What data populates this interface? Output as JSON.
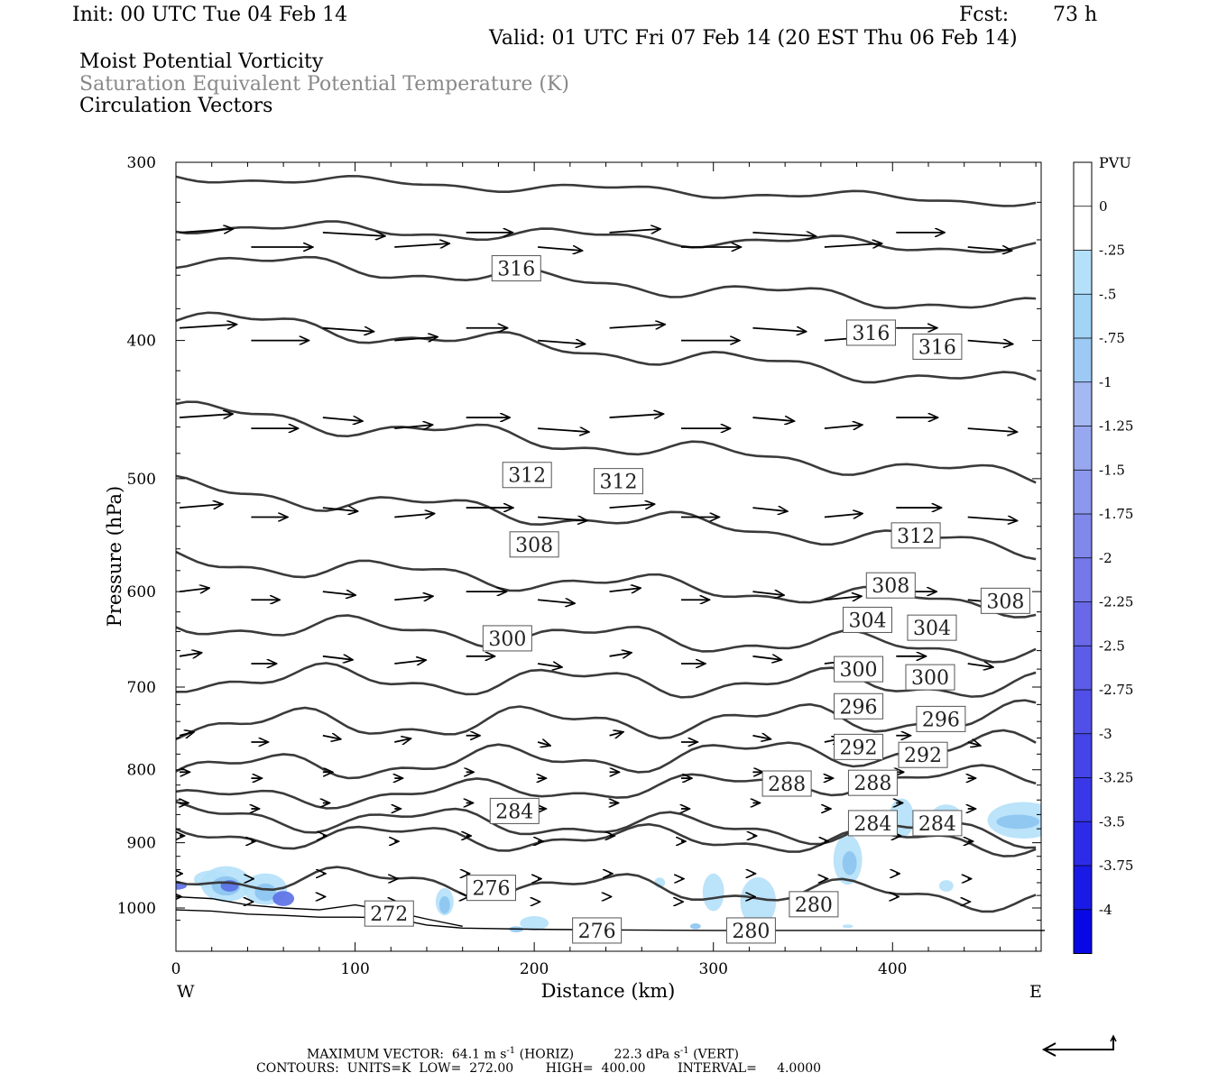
{
  "header": {
    "init": "Init: 00 UTC Tue 04 Feb 14",
    "fcst_label": "Fcst:",
    "fcst_value": "73 h",
    "valid": "Valid: 01 UTC Fri 07 Feb 14 (20 EST Thu 06 Feb 14)",
    "field1": "Moist Potential Vorticity",
    "field2": "Saturation Equivalent Potential Temperature (K)",
    "field3": "Circulation Vectors"
  },
  "footer": {
    "max_vector_prefix": "MAXIMUM VECTOR:  64.1 m s",
    "max_vector_mid": " (HORIZ)          22.3 dPa s",
    "max_vector_suffix": " (VERT)",
    "sup": "-1",
    "contours": "CONTOURS:  UNITS=K  LOW=  272.00        HIGH=  400.00        INTERVAL=     4.0000"
  },
  "colors": {
    "contour": "#3a3a3a",
    "shade_light": "#b4e0fa",
    "shade_mid": "#8cc4f0",
    "shade_dark": "#5a6ee6",
    "shade_darkest": "#2a2ae6"
  },
  "chart_data": {
    "type": "contour",
    "xlabel": "Distance (km)",
    "ylabel": "Pressure (hPa)",
    "xlim": [
      0,
      485
    ],
    "ylim": [
      1040,
      300
    ],
    "y_scale": "log",
    "x_ticks": [
      0,
      100,
      200,
      300,
      400
    ],
    "x_tick_labels": [
      "0",
      "100",
      "200",
      "300",
      "400"
    ],
    "y_ticks": [
      300,
      400,
      500,
      600,
      700,
      800,
      900,
      1000
    ],
    "y_tick_labels": [
      "300",
      "400",
      "500",
      "600",
      "700",
      "800",
      "900",
      "1000"
    ],
    "left_label": "W",
    "right_label": "E",
    "colorbar": {
      "title": "PVU",
      "tick_labels": [
        "0",
        "-.25",
        "-.5",
        "-.75",
        "-1",
        "-1.25",
        "-1.5",
        "-1.75",
        "-2",
        "-2.25",
        "-2.5",
        "-2.75",
        "-3",
        "-3.25",
        "-3.5",
        "-3.75",
        "-4"
      ],
      "colors": [
        "#ffffff",
        "#ffffff",
        "#b4e0fa",
        "#a2d4f6",
        "#9ccaf4",
        "#a4b8f2",
        "#98a8f0",
        "#8c98ee",
        "#8088ec",
        "#7478ea",
        "#6868e8",
        "#5c5ce8",
        "#5050e8",
        "#4444e8",
        "#3838e8",
        "#2c2ce8",
        "#1a1ae6",
        "#0808e6"
      ]
    },
    "contour_labels": [
      {
        "text": "316",
        "x": 190,
        "p": 356
      },
      {
        "text": "316",
        "x": 388,
        "p": 395
      },
      {
        "text": "316",
        "x": 425,
        "p": 404
      },
      {
        "text": "312",
        "x": 196,
        "p": 497
      },
      {
        "text": "312",
        "x": 247,
        "p": 502
      },
      {
        "text": "312",
        "x": 413,
        "p": 548
      },
      {
        "text": "308",
        "x": 200,
        "p": 556
      },
      {
        "text": "308",
        "x": 399,
        "p": 594
      },
      {
        "text": "308",
        "x": 463,
        "p": 609
      },
      {
        "text": "304",
        "x": 386,
        "p": 628
      },
      {
        "text": "304",
        "x": 422,
        "p": 636
      },
      {
        "text": "300",
        "x": 185,
        "p": 647
      },
      {
        "text": "300",
        "x": 381,
        "p": 680
      },
      {
        "text": "300",
        "x": 421,
        "p": 689
      },
      {
        "text": "296",
        "x": 381,
        "p": 722
      },
      {
        "text": "296",
        "x": 427,
        "p": 737
      },
      {
        "text": "292",
        "x": 381,
        "p": 771
      },
      {
        "text": "292",
        "x": 417,
        "p": 781
      },
      {
        "text": "288",
        "x": 341,
        "p": 818
      },
      {
        "text": "288",
        "x": 389,
        "p": 817
      },
      {
        "text": "284",
        "x": 189,
        "p": 855
      },
      {
        "text": "284",
        "x": 389,
        "p": 872
      },
      {
        "text": "284",
        "x": 425,
        "p": 872
      },
      {
        "text": "276",
        "x": 176,
        "p": 968
      },
      {
        "text": "280",
        "x": 356,
        "p": 994
      },
      {
        "text": "272",
        "x": 119,
        "p": 1009
      },
      {
        "text": "276",
        "x": 235,
        "p": 1037
      },
      {
        "text": "280",
        "x": 321,
        "p": 1037
      }
    ],
    "vector_annotation": "reference vector, lower right"
  }
}
